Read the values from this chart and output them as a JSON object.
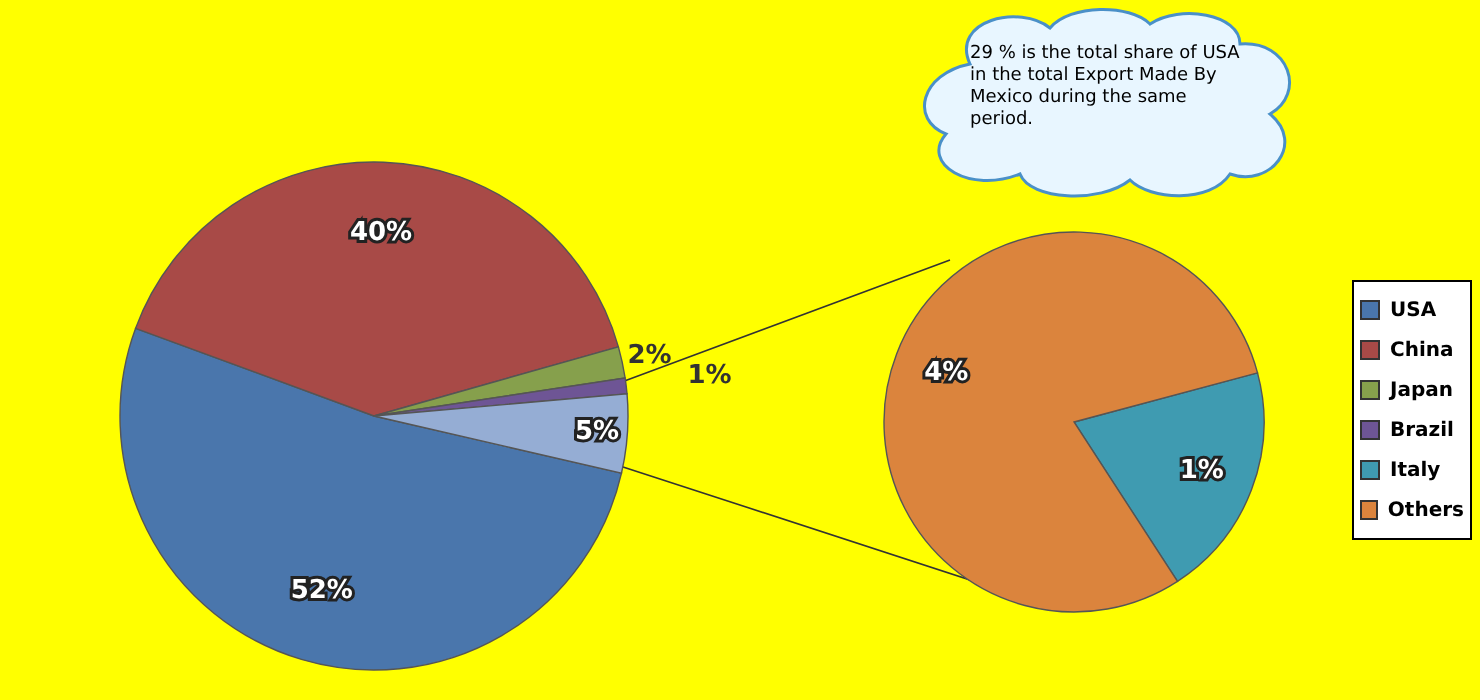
{
  "chart_data": [
    {
      "type": "pie",
      "categories": [
        "USA",
        "China",
        "Japan",
        "Brazil",
        null
      ],
      "values": [
        52,
        40,
        2,
        1,
        5
      ],
      "colors": [
        "#4a76ac",
        "#a84a47",
        "#86a04c",
        "#6e5595",
        "#95add4"
      ],
      "value_labels": [
        "52%",
        "40%",
        "2%",
        "1%",
        "5%"
      ],
      "legend": "right",
      "annotations": [
        "29 % is the total share of USA in the total Export Made By Mexico during the same period."
      ]
    },
    {
      "type": "pie",
      "categories": [
        "Italy",
        "Others"
      ],
      "values": [
        1,
        4
      ],
      "colors": [
        "#3f9bb1",
        "#db843d"
      ],
      "value_labels": [
        "1%",
        "4%"
      ],
      "legend": "right"
    }
  ]
}
